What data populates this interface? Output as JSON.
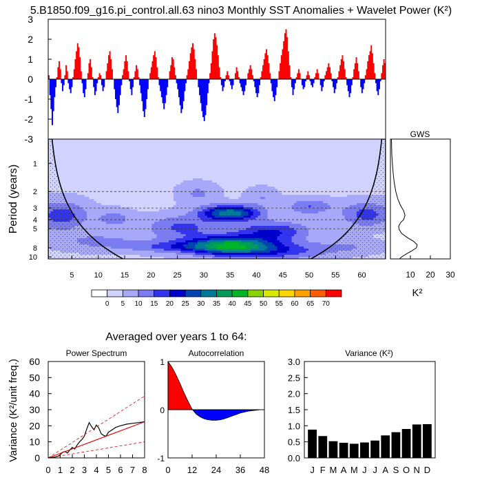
{
  "title": "5.B1850.f09_g16.pi_control.all.63 nino3 Monthly SST Anomalies + Wavelet Power (K²)",
  "subtitle": "Averaged over years 1 to 64:",
  "colors": {
    "positive": "#ff0000",
    "negative": "#0000ff",
    "spectrum_red": "#e00000"
  },
  "chart_data": [
    {
      "id": "timeseries",
      "type": "bar",
      "ylim": [
        -3,
        3
      ],
      "yticks": [
        "3",
        "2",
        "1",
        "0",
        "-1",
        "-2",
        "-3"
      ],
      "ytick_values": [
        3,
        2,
        1,
        0,
        -1,
        -2,
        -3
      ],
      "x_range_years": [
        0.5,
        64.5
      ],
      "values": [
        0.2,
        -0.8,
        -1.5,
        -2.3,
        -1.6,
        -0.9,
        -0.4,
        0.1,
        0.6,
        0.9,
        0.5,
        -0.2,
        -0.6,
        -0.3,
        0.2,
        0.7,
        0.4,
        -0.2,
        -0.5,
        -0.7,
        -0.4,
        0.1,
        0.5,
        1.0,
        1.4,
        1.8,
        1.6,
        1.1,
        0.4,
        -0.2,
        -0.7,
        -0.9,
        -0.5,
        0.0,
        0.3,
        0.8,
        1.0,
        0.6,
        0.1,
        -0.4,
        -0.8,
        -0.6,
        -0.2,
        0.1,
        0.3,
        0.2,
        -0.3,
        -0.6,
        -0.4,
        0.0,
        0.4,
        0.8,
        1.2,
        1.4,
        1.0,
        0.5,
        0.0,
        -0.5,
        -1.0,
        -1.4,
        -1.7,
        -1.3,
        -0.8,
        -0.3,
        0.2,
        0.5,
        0.9,
        1.2,
        0.9,
        0.4,
        -0.1,
        -0.5,
        -0.8,
        -0.4,
        0.1,
        0.4,
        0.7,
        0.5,
        0.1,
        -0.3,
        -0.7,
        -1.1,
        -1.6,
        -1.9,
        -1.5,
        -1.0,
        -0.5,
        0.0,
        0.3,
        0.6,
        0.9,
        1.2,
        1.4,
        1.1,
        0.6,
        0.1,
        -0.3,
        -0.6,
        -0.9,
        -1.2,
        -1.5,
        -1.2,
        -0.8,
        -0.4,
        0.0,
        0.4,
        0.7,
        1.1,
        1.0,
        0.6,
        0.2,
        -0.2,
        -0.5,
        -0.9,
        -1.3,
        -1.7,
        -1.5,
        -1.1,
        -0.6,
        -0.2,
        0.2,
        0.5,
        0.9,
        1.3,
        1.6,
        1.8,
        1.5,
        1.0,
        0.5,
        0.0,
        -0.4,
        -0.8,
        -1.2,
        -1.6,
        -1.9,
        -2.1,
        -1.8,
        -1.3,
        -0.7,
        -0.2,
        0.3,
        0.8,
        1.4,
        2.0,
        2.3,
        2.1,
        1.7,
        1.2,
        0.6,
        0.1,
        -0.3,
        -0.6,
        -0.4,
        -0.1,
        0.2,
        0.4,
        0.2,
        -0.1,
        -0.3,
        -0.5,
        -0.3,
        0.0,
        0.3,
        0.6,
        0.4,
        0.1,
        -0.2,
        -0.4,
        -0.6,
        -0.8,
        -0.6,
        -0.3,
        0.0,
        0.3,
        0.5,
        0.7,
        0.5,
        0.2,
        -0.1,
        -0.4,
        -0.7,
        -0.9,
        -0.7,
        -0.3,
        0.1,
        0.4,
        0.7,
        1.0,
        1.3,
        1.5,
        1.2,
        0.8,
        0.3,
        -0.2,
        -0.6,
        -0.9,
        -1.1,
        -0.8,
        -0.4,
        0.0,
        0.4,
        0.8,
        1.2,
        1.5,
        1.9,
        2.3,
        2.5,
        2.1,
        1.4,
        0.7,
        0.1,
        -0.4,
        -0.8,
        -0.5,
        -0.2,
        0.1,
        0.3,
        0.5,
        0.3,
        0.0,
        -0.3,
        -0.5,
        -0.4,
        -0.1,
        0.2,
        0.4,
        0.2,
        -0.1,
        -0.3,
        -0.4,
        -0.2,
        0.1,
        0.3,
        0.5,
        0.3,
        0.0,
        -0.3,
        -0.6,
        -0.4,
        -0.1,
        0.2,
        0.4,
        0.6,
        0.8,
        0.6,
        0.3,
        -0.1,
        -0.4,
        -0.7,
        -0.5,
        -0.2,
        0.1,
        0.4,
        0.7,
        1.0,
        1.2,
        0.9,
        0.5,
        0.1,
        -0.3,
        -0.6,
        -0.9,
        -0.7,
        -0.3,
        0.1,
        0.5,
        0.8,
        1.1,
        0.8,
        0.4,
        0.0,
        -0.4,
        -0.7,
        -0.5,
        -0.2,
        0.2,
        0.5,
        0.9,
        1.2,
        1.4,
        1.7,
        1.3,
        0.8,
        0.3,
        -0.2,
        -0.6,
        -0.8,
        -0.5,
        -0.1,
        0.3,
        0.7,
        1.0,
        0.8
      ]
    },
    {
      "id": "wavelet",
      "type": "heatmap",
      "ylabel": "Period (years)",
      "yticks": [
        "1",
        "2",
        "3",
        "4",
        "5",
        "8",
        "10"
      ],
      "ytick_values": [
        1,
        2,
        3,
        4,
        5,
        8,
        10
      ],
      "xticks": [
        "5",
        "10",
        "15",
        "20",
        "25",
        "30",
        "35",
        "40",
        "45",
        "50",
        "55",
        "60"
      ],
      "xtick_values": [
        5,
        10,
        15,
        20,
        25,
        30,
        35,
        40,
        45,
        50,
        55,
        60
      ],
      "x_range_years": [
        0.5,
        64.5
      ],
      "period_range": [
        0.55,
        10.5
      ],
      "dashed_periods": [
        2,
        3,
        4,
        5
      ],
      "contour_levels": [
        0,
        5,
        10,
        15,
        20,
        25,
        30,
        35,
        40,
        45,
        50,
        55,
        60,
        65,
        70
      ],
      "blobs": [
        {
          "x": 35,
          "p": 7.6,
          "sx": 6.0,
          "sp": 0.16,
          "amp": 36
        },
        {
          "x": 35,
          "p": 3.4,
          "sx": 3.8,
          "sp": 0.13,
          "amp": 30
        },
        {
          "x": 43,
          "p": 5.3,
          "sx": 5.0,
          "sp": 0.17,
          "amp": 16
        },
        {
          "x": 26,
          "p": 4.8,
          "sx": 5.0,
          "sp": 0.2,
          "amp": 12
        },
        {
          "x": 50,
          "p": 2.9,
          "sx": 3.0,
          "sp": 0.14,
          "amp": 11
        },
        {
          "x": 3,
          "p": 3.6,
          "sx": 3.5,
          "sp": 0.25,
          "amp": 14
        },
        {
          "x": 61,
          "p": 3.5,
          "sx": 3.5,
          "sp": 0.22,
          "amp": 13
        },
        {
          "x": 13,
          "p": 3.9,
          "sx": 2.5,
          "sp": 0.15,
          "amp": 8
        },
        {
          "x": 10,
          "p": 6.8,
          "sx": 6.0,
          "sp": 0.16,
          "amp": 7
        },
        {
          "x": 23,
          "p": 7.8,
          "sx": 6.0,
          "sp": 0.1,
          "amp": 9
        },
        {
          "x": 29,
          "p": 2.1,
          "sx": 2.5,
          "sp": 0.18,
          "amp": 7
        },
        {
          "x": 41,
          "p": 2.3,
          "sx": 2.0,
          "sp": 0.16,
          "amp": 6
        },
        {
          "x": 57,
          "p": 7.8,
          "sx": 5.0,
          "sp": 0.12,
          "amp": 6
        },
        {
          "x": 45,
          "p": 8.8,
          "sx": 6.0,
          "sp": 0.14,
          "amp": 11
        }
      ],
      "background_power": 4
    },
    {
      "id": "gws",
      "type": "line",
      "title": "GWS",
      "xlabel": "K²",
      "xticks": [
        "10",
        "20",
        "30"
      ],
      "xtick_values": [
        10,
        20,
        30
      ],
      "xlim": [
        0,
        30
      ],
      "period": [
        0.55,
        0.8,
        1.0,
        1.3,
        1.6,
        2.0,
        2.4,
        2.8,
        3.2,
        3.6,
        4.0,
        4.3,
        4.7,
        5.1,
        5.6,
        6.2,
        6.8,
        7.4,
        8.0,
        8.6,
        9.3,
        10.0,
        10.5
      ],
      "values": [
        0.5,
        0.7,
        1.0,
        1.4,
        1.9,
        2.7,
        3.7,
        5.0,
        6.6,
        7.3,
        6.6,
        5.1,
        4.1,
        4.4,
        5.6,
        8.4,
        11.6,
        13.4,
        13.0,
        10.8,
        8.0,
        5.6,
        4.6
      ]
    },
    {
      "id": "power_spectrum",
      "type": "line",
      "title": "Power Spectrum",
      "ylabel": "Variance (K²/unit freq.)",
      "xlim": [
        0,
        8
      ],
      "ylim": [
        0,
        60
      ],
      "xticks": [
        "0",
        "1",
        "2",
        "3",
        "4",
        "5",
        "6",
        "7",
        "8"
      ],
      "xtick_values": [
        0,
        1,
        2,
        3,
        4,
        5,
        6,
        7,
        8
      ],
      "yticks": [
        "0",
        "10",
        "20",
        "30",
        "40",
        "50",
        "60"
      ],
      "ytick_values": [
        0,
        10,
        20,
        30,
        40,
        50,
        60
      ],
      "series": [
        {
          "x": [
            0.0,
            0.2,
            0.4,
            0.6,
            0.8,
            1.0,
            1.2,
            1.4,
            1.6,
            1.8,
            2.0,
            2.2,
            2.4,
            2.6,
            2.8,
            3.0,
            3.2,
            3.4,
            3.6,
            3.8,
            4.0,
            4.2,
            4.4,
            4.6,
            4.8,
            5.0,
            5.3,
            5.6,
            6.0,
            6.5,
            7.0,
            7.5,
            8.0
          ],
          "y": [
            0,
            0.2,
            0.4,
            0.6,
            1.0,
            2.0,
            3.5,
            4.0,
            3.0,
            5.0,
            6.5,
            5.5,
            8.0,
            10.0,
            11.5,
            13.5,
            18.0,
            22.0,
            19.5,
            17.5,
            20.5,
            18.5,
            15.0,
            14.0,
            13.5,
            16.0,
            17.5,
            19.0,
            20.0,
            21.0,
            21.5,
            22.0,
            22.5
          ],
          "color": "#000000"
        },
        {
          "x": [
            0,
            8
          ],
          "y": [
            0,
            22.5
          ],
          "color": "#e00000"
        },
        {
          "x": [
            0,
            8
          ],
          "y": [
            0,
            38.5
          ],
          "color": "#e00000",
          "dashed": true
        },
        {
          "x": [
            0,
            8
          ],
          "y": [
            0,
            10.0
          ],
          "color": "#e00000",
          "dashed": true
        }
      ]
    },
    {
      "id": "autocorrelation",
      "type": "area",
      "title": "Autocorrelation",
      "xlim": [
        0,
        48
      ],
      "ylim": [
        -1,
        1
      ],
      "xticks": [
        "0",
        "12",
        "24",
        "36",
        "48"
      ],
      "xtick_values": [
        0,
        12,
        24,
        36,
        48
      ],
      "yticks": [
        "1",
        "0",
        "-1"
      ],
      "ytick_values": [
        1,
        0,
        -1
      ],
      "x": [
        0,
        2,
        4,
        6,
        8,
        10,
        12,
        14,
        16,
        18,
        20,
        22,
        24,
        26,
        28,
        30,
        32,
        34,
        36,
        38,
        40,
        42,
        44,
        46,
        48
      ],
      "y": [
        1.0,
        0.88,
        0.72,
        0.54,
        0.35,
        0.17,
        0.01,
        -0.09,
        -0.15,
        -0.19,
        -0.21,
        -0.22,
        -0.22,
        -0.21,
        -0.19,
        -0.16,
        -0.13,
        -0.1,
        -0.07,
        -0.05,
        -0.03,
        -0.02,
        -0.01,
        0.0,
        0.0
      ]
    },
    {
      "id": "monthly_variance",
      "type": "bar",
      "title": "Variance (K²)",
      "categories": [
        "J",
        "F",
        "M",
        "A",
        "M",
        "J",
        "J",
        "A",
        "S",
        "O",
        "N",
        "D"
      ],
      "values": [
        0.88,
        0.68,
        0.52,
        0.47,
        0.44,
        0.48,
        0.54,
        0.7,
        0.8,
        0.9,
        1.04,
        1.05
      ],
      "ylim": [
        0,
        3
      ],
      "yticks": [
        "0.0",
        "0.5",
        "1.0",
        "1.5",
        "2.0",
        "2.5",
        "3.0"
      ],
      "ytick_values": [
        0,
        0.5,
        1.0,
        1.5,
        2.0,
        2.5,
        3.0
      ]
    }
  ],
  "colorbar": {
    "labels": [
      "0",
      "5",
      "10",
      "15",
      "20",
      "25",
      "30",
      "35",
      "40",
      "45",
      "50",
      "55",
      "60",
      "65",
      "70"
    ],
    "colors": [
      "#ffffff",
      "#d2d2ff",
      "#a8a8fa",
      "#7c7cf2",
      "#3434ee",
      "#0000cc",
      "#0044b4",
      "#007a98",
      "#009a5a",
      "#00b428",
      "#88d200",
      "#d8e800",
      "#ffd400",
      "#ffa000",
      "#ff5c00",
      "#ff0000"
    ]
  }
}
